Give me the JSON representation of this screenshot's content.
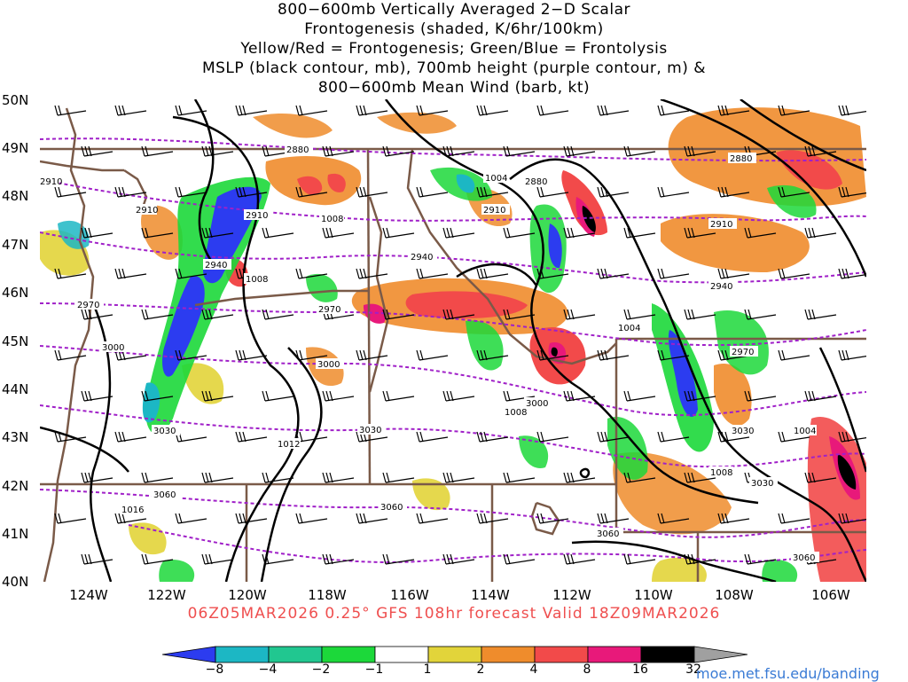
{
  "title_lines": [
    "800−600mb Vertically Averaged 2−D Scalar",
    "Frontogenesis (shaded, K/6hr/100km)",
    "Yellow/Red = Frontogenesis;  Green/Blue = Frontolysis",
    "MSLP (black contour, mb), 700mb height (purple contour, m) &",
    "800−600mb Mean Wind (barb, kt)"
  ],
  "lat_labels": [
    "50N",
    "49N",
    "48N",
    "47N",
    "46N",
    "45N",
    "44N",
    "43N",
    "42N",
    "41N",
    "40N"
  ],
  "lon_labels": [
    "124W",
    "122W",
    "120W",
    "118W",
    "116W",
    "114W",
    "112W",
    "110W",
    "108W",
    "106W"
  ],
  "forecast_info": "06Z05MAR2026 0.25° GFS 108hr forecast Valid 18Z09MAR2026",
  "colorbar": {
    "labels": [
      "−8",
      "−4",
      "−2",
      "−1",
      "1",
      "2",
      "4",
      "8",
      "16",
      "32"
    ],
    "colors": [
      "#2c3cf0",
      "#1cb7c4",
      "#21c790",
      "#1cd83a",
      "#ffffff",
      "#e2d43a",
      "#ef8c2c",
      "#f24a4a",
      "#e8197a",
      "#000000",
      "#a0a0a0"
    ]
  },
  "height_contour_labels": [
    "2880",
    "2880",
    "2880",
    "2910",
    "2910",
    "2910",
    "2940",
    "2940",
    "2940",
    "2970",
    "2970",
    "2970",
    "3000",
    "3000",
    "3000",
    "3030",
    "3030",
    "3030",
    "3060",
    "3060",
    "3060",
    "3060",
    "2910",
    "2910",
    "3030"
  ],
  "mslp_contour_labels": [
    "1004",
    "1004",
    "1004",
    "1008",
    "1008",
    "1008",
    "1008",
    "1012",
    "1016"
  ],
  "source_url": "moe.met.fsu.edu/banding"
}
